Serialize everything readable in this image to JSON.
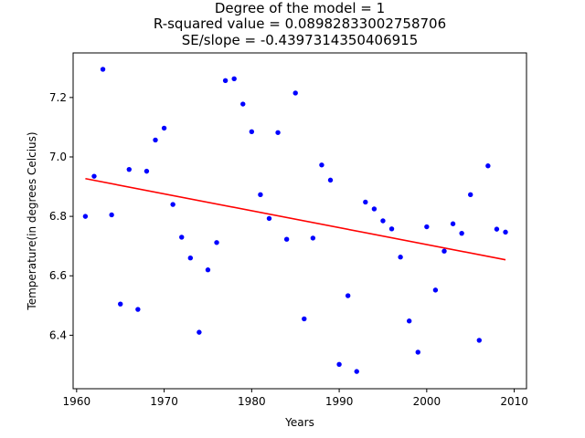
{
  "chart_data": {
    "type": "scatter",
    "title_lines": [
      "Degree of the model = 1",
      "R-squared value = 0.08982833002758706",
      "SE/slope = -0.4397314350406915"
    ],
    "xlabel": "Years",
    "ylabel": "Temperature(in degrees Celcius)",
    "xlim": [
      1959.6,
      2011.4
    ],
    "ylim": [
      6.22,
      7.35
    ],
    "x_ticks": [
      1960,
      1970,
      1980,
      1990,
      2000,
      2010
    ],
    "y_ticks": [
      6.4,
      6.6,
      6.8,
      7.0,
      7.2
    ],
    "grid": false,
    "series": [
      {
        "type": "scatter",
        "color": "#0000ff",
        "points": [
          [
            1961,
            6.8
          ],
          [
            1962,
            6.935
          ],
          [
            1963,
            7.295
          ],
          [
            1964,
            6.805
          ],
          [
            1965,
            6.505
          ],
          [
            1966,
            6.958
          ],
          [
            1967,
            6.487
          ],
          [
            1968,
            6.952
          ],
          [
            1969,
            7.057
          ],
          [
            1970,
            7.097
          ],
          [
            1971,
            6.84
          ],
          [
            1972,
            6.73
          ],
          [
            1973,
            6.66
          ],
          [
            1974,
            6.41
          ],
          [
            1975,
            6.62
          ],
          [
            1976,
            6.712
          ],
          [
            1977,
            7.257
          ],
          [
            1978,
            7.263
          ],
          [
            1979,
            7.178
          ],
          [
            1980,
            7.085
          ],
          [
            1981,
            6.873
          ],
          [
            1982,
            6.793
          ],
          [
            1983,
            7.082
          ],
          [
            1984,
            6.723
          ],
          [
            1985,
            7.215
          ],
          [
            1986,
            6.455
          ],
          [
            1987,
            6.727
          ],
          [
            1988,
            6.973
          ],
          [
            1989,
            6.922
          ],
          [
            1990,
            6.302
          ],
          [
            1991,
            6.533
          ],
          [
            1992,
            6.278
          ],
          [
            1993,
            6.848
          ],
          [
            1994,
            6.825
          ],
          [
            1995,
            6.785
          ],
          [
            1996,
            6.758
          ],
          [
            1997,
            6.663
          ],
          [
            1998,
            6.448
          ],
          [
            1999,
            6.343
          ],
          [
            2000,
            6.765
          ],
          [
            2001,
            6.552
          ],
          [
            2002,
            6.683
          ],
          [
            2003,
            6.775
          ],
          [
            2004,
            6.743
          ],
          [
            2005,
            6.873
          ],
          [
            2006,
            6.383
          ],
          [
            2007,
            6.97
          ],
          [
            2008,
            6.757
          ],
          [
            2009,
            6.747
          ]
        ]
      },
      {
        "type": "line",
        "color": "#ff0000",
        "x": [
          1961,
          2009
        ],
        "y": [
          6.927,
          6.654
        ]
      }
    ]
  }
}
